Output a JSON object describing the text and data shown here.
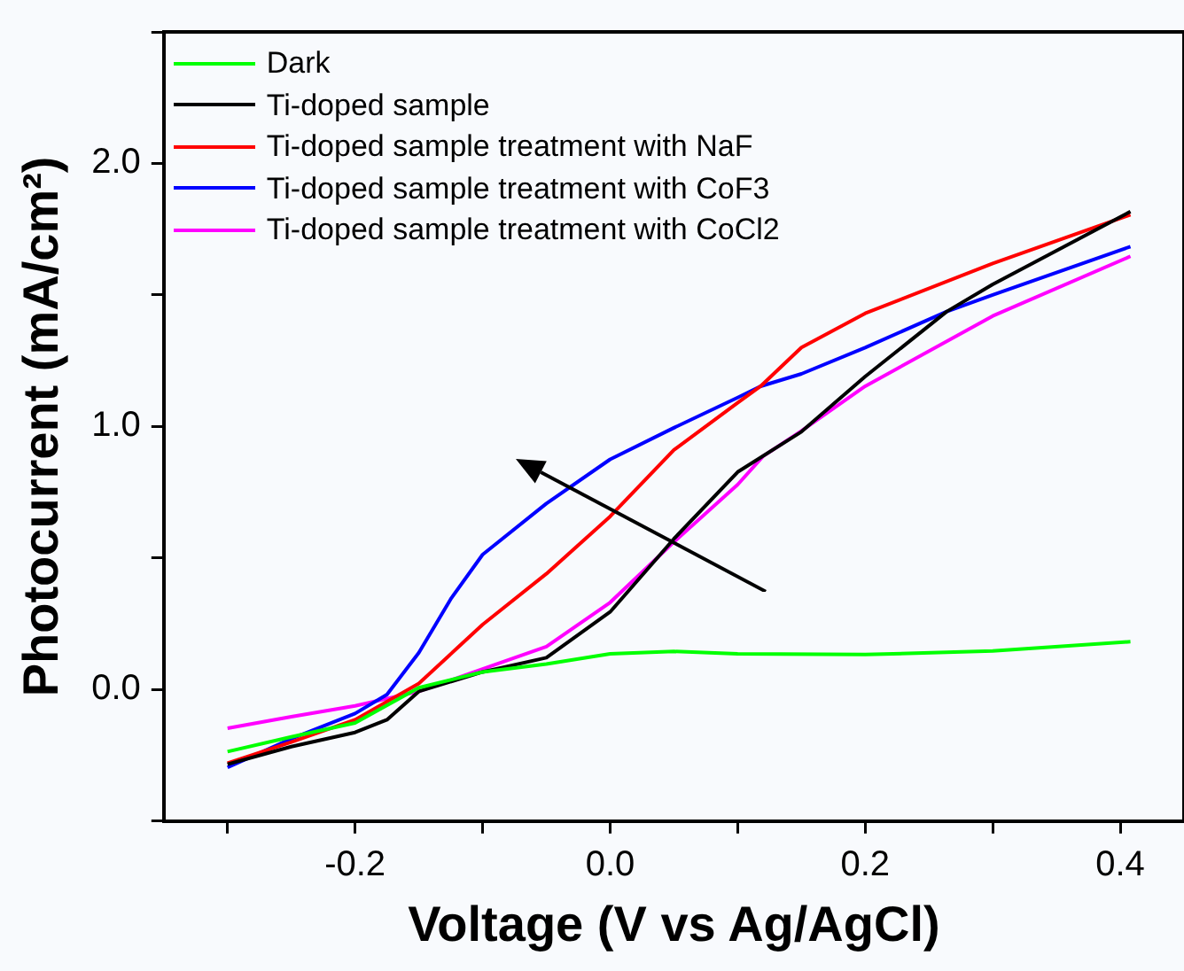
{
  "chart_data": {
    "type": "line",
    "xlabel": "Voltage (V vs Ag/AgCl)",
    "ylabel": "Photocurrent (mA/cm²)",
    "xlim": [
      -0.35,
      0.45
    ],
    "xticks": [
      {
        "value": -0.3,
        "label": null
      },
      -0.2,
      {
        "value": -0.1,
        "label": null
      },
      {
        "value": 0,
        "label": "0.0"
      },
      {
        "value": 0.1,
        "label": null
      },
      0.2,
      {
        "value": 0.3,
        "label": null
      },
      0.4
    ],
    "ylim": [
      -0.5,
      2.5
    ],
    "yticks": [
      {
        "value": -0.5,
        "label": null
      },
      {
        "value": 0,
        "label": "0.0"
      },
      {
        "value": 0.5,
        "label": null
      },
      {
        "value": 1,
        "label": "1.0"
      },
      {
        "value": 1.5,
        "label": null
      },
      {
        "value": 2,
        "label": "2.0"
      },
      {
        "value": 2.5,
        "label": null
      }
    ],
    "grid": false,
    "legend": "top left",
    "marker": "none",
    "line_style": "solid",
    "series": [
      {
        "name": "Dark",
        "color": "#00ff00",
        "x": [
          -0.3,
          -0.25,
          -0.2,
          -0.15,
          -0.1,
          -0.05,
          0,
          0.05,
          0.1,
          0.2,
          0.3,
          0.408
        ],
        "values": [
          -0.236,
          -0.18,
          -0.127,
          0.007,
          0.067,
          0.097,
          0.136,
          0.145,
          0.136,
          0.133,
          0.147,
          0.182
        ]
      },
      {
        "name": "Ti-doped sample",
        "color": "#000000",
        "x": [
          -0.3,
          -0.25,
          -0.2,
          -0.175,
          -0.15,
          -0.1,
          -0.05,
          0,
          0.05,
          0.1,
          0.15,
          0.2,
          0.264,
          0.3,
          0.408
        ],
        "values": [
          -0.284,
          -0.217,
          -0.163,
          -0.115,
          -0.007,
          0.067,
          0.121,
          0.295,
          0.573,
          0.827,
          0.98,
          1.19,
          1.437,
          1.54,
          1.817
        ]
      },
      {
        "name": "Ti-doped sample treatment with NaF",
        "color": "#ff0000",
        "x": [
          -0.3,
          -0.25,
          -0.2,
          -0.15,
          -0.1,
          -0.05,
          0,
          0.05,
          0.1,
          0.118,
          0.15,
          0.2,
          0.3,
          0.408
        ],
        "values": [
          -0.28,
          -0.2,
          -0.115,
          0.023,
          0.247,
          0.44,
          0.658,
          0.911,
          1.09,
          1.153,
          1.3,
          1.43,
          1.62,
          1.805
        ]
      },
      {
        "name": "Ti-doped sample treatment with CoF3",
        "color": "#0000ff",
        "x": [
          -0.3,
          -0.25,
          -0.2,
          -0.175,
          -0.15,
          -0.125,
          -0.1,
          -0.05,
          0,
          0.05,
          0.1,
          0.118,
          0.15,
          0.2,
          0.264,
          0.3,
          0.408
        ],
        "values": [
          -0.296,
          -0.187,
          -0.091,
          -0.019,
          0.14,
          0.344,
          0.513,
          0.707,
          0.875,
          0.995,
          1.11,
          1.153,
          1.2,
          1.3,
          1.437,
          1.5,
          1.684
        ]
      },
      {
        "name": "Ti-doped sample treatment with CoCl2",
        "color": "#ff00ff",
        "x": [
          -0.3,
          -0.25,
          -0.2,
          -0.15,
          -0.1,
          -0.05,
          0,
          0.05,
          0.1,
          0.12,
          0.15,
          0.2,
          0.3,
          0.408
        ],
        "values": [
          -0.147,
          -0.103,
          -0.062,
          -0.007,
          0.078,
          0.163,
          0.331,
          0.561,
          0.779,
          0.887,
          0.983,
          1.153,
          1.42,
          1.647
        ]
      }
    ]
  }
}
